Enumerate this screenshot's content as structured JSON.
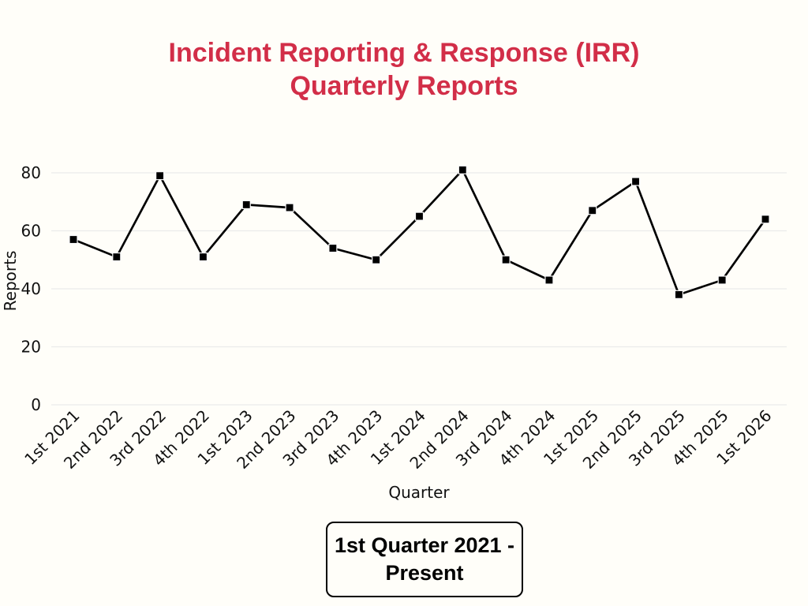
{
  "page": {
    "background": "#fffef9"
  },
  "header": {
    "title_line1": "Incident Reporting & Response (IRR)",
    "title_line2": "Quarterly Reports",
    "title_color": "#d22e48"
  },
  "chart_data": {
    "type": "line",
    "title": "Incident Reporting & Response (IRR) Quarterly Reports",
    "categories": [
      "1st 2021",
      "2nd 2022",
      "3rd 2022",
      "4th 2022",
      "1st 2023",
      "2nd 2023",
      "3rd 2023",
      "4th 2023",
      "1st 2024",
      "2nd 2024",
      "3rd 2024",
      "4th 2024",
      "1st 2025",
      "2nd 2025",
      "3rd 2025",
      "4th 2025",
      "1st 2026"
    ],
    "series": [
      {
        "name": "Reports",
        "values": [
          57,
          51,
          79,
          51,
          69,
          68,
          54,
          50,
          65,
          81,
          50,
          43,
          67,
          77,
          38,
          43,
          64
        ]
      }
    ],
    "xlabel": "Quarter",
    "ylabel": "Reports",
    "ylim": [
      0,
      85
    ],
    "yticks": [
      0,
      20,
      40,
      60,
      80
    ],
    "grid": true,
    "legend_position": "none",
    "marker": "square",
    "colors": {
      "line": "#000000",
      "marker": "#000000",
      "marker_edge": "#fafafa",
      "grid": "#ebebeb",
      "axis_text": "#111111"
    }
  },
  "footer": {
    "caption": "1st Quarter 2021 - Present"
  }
}
